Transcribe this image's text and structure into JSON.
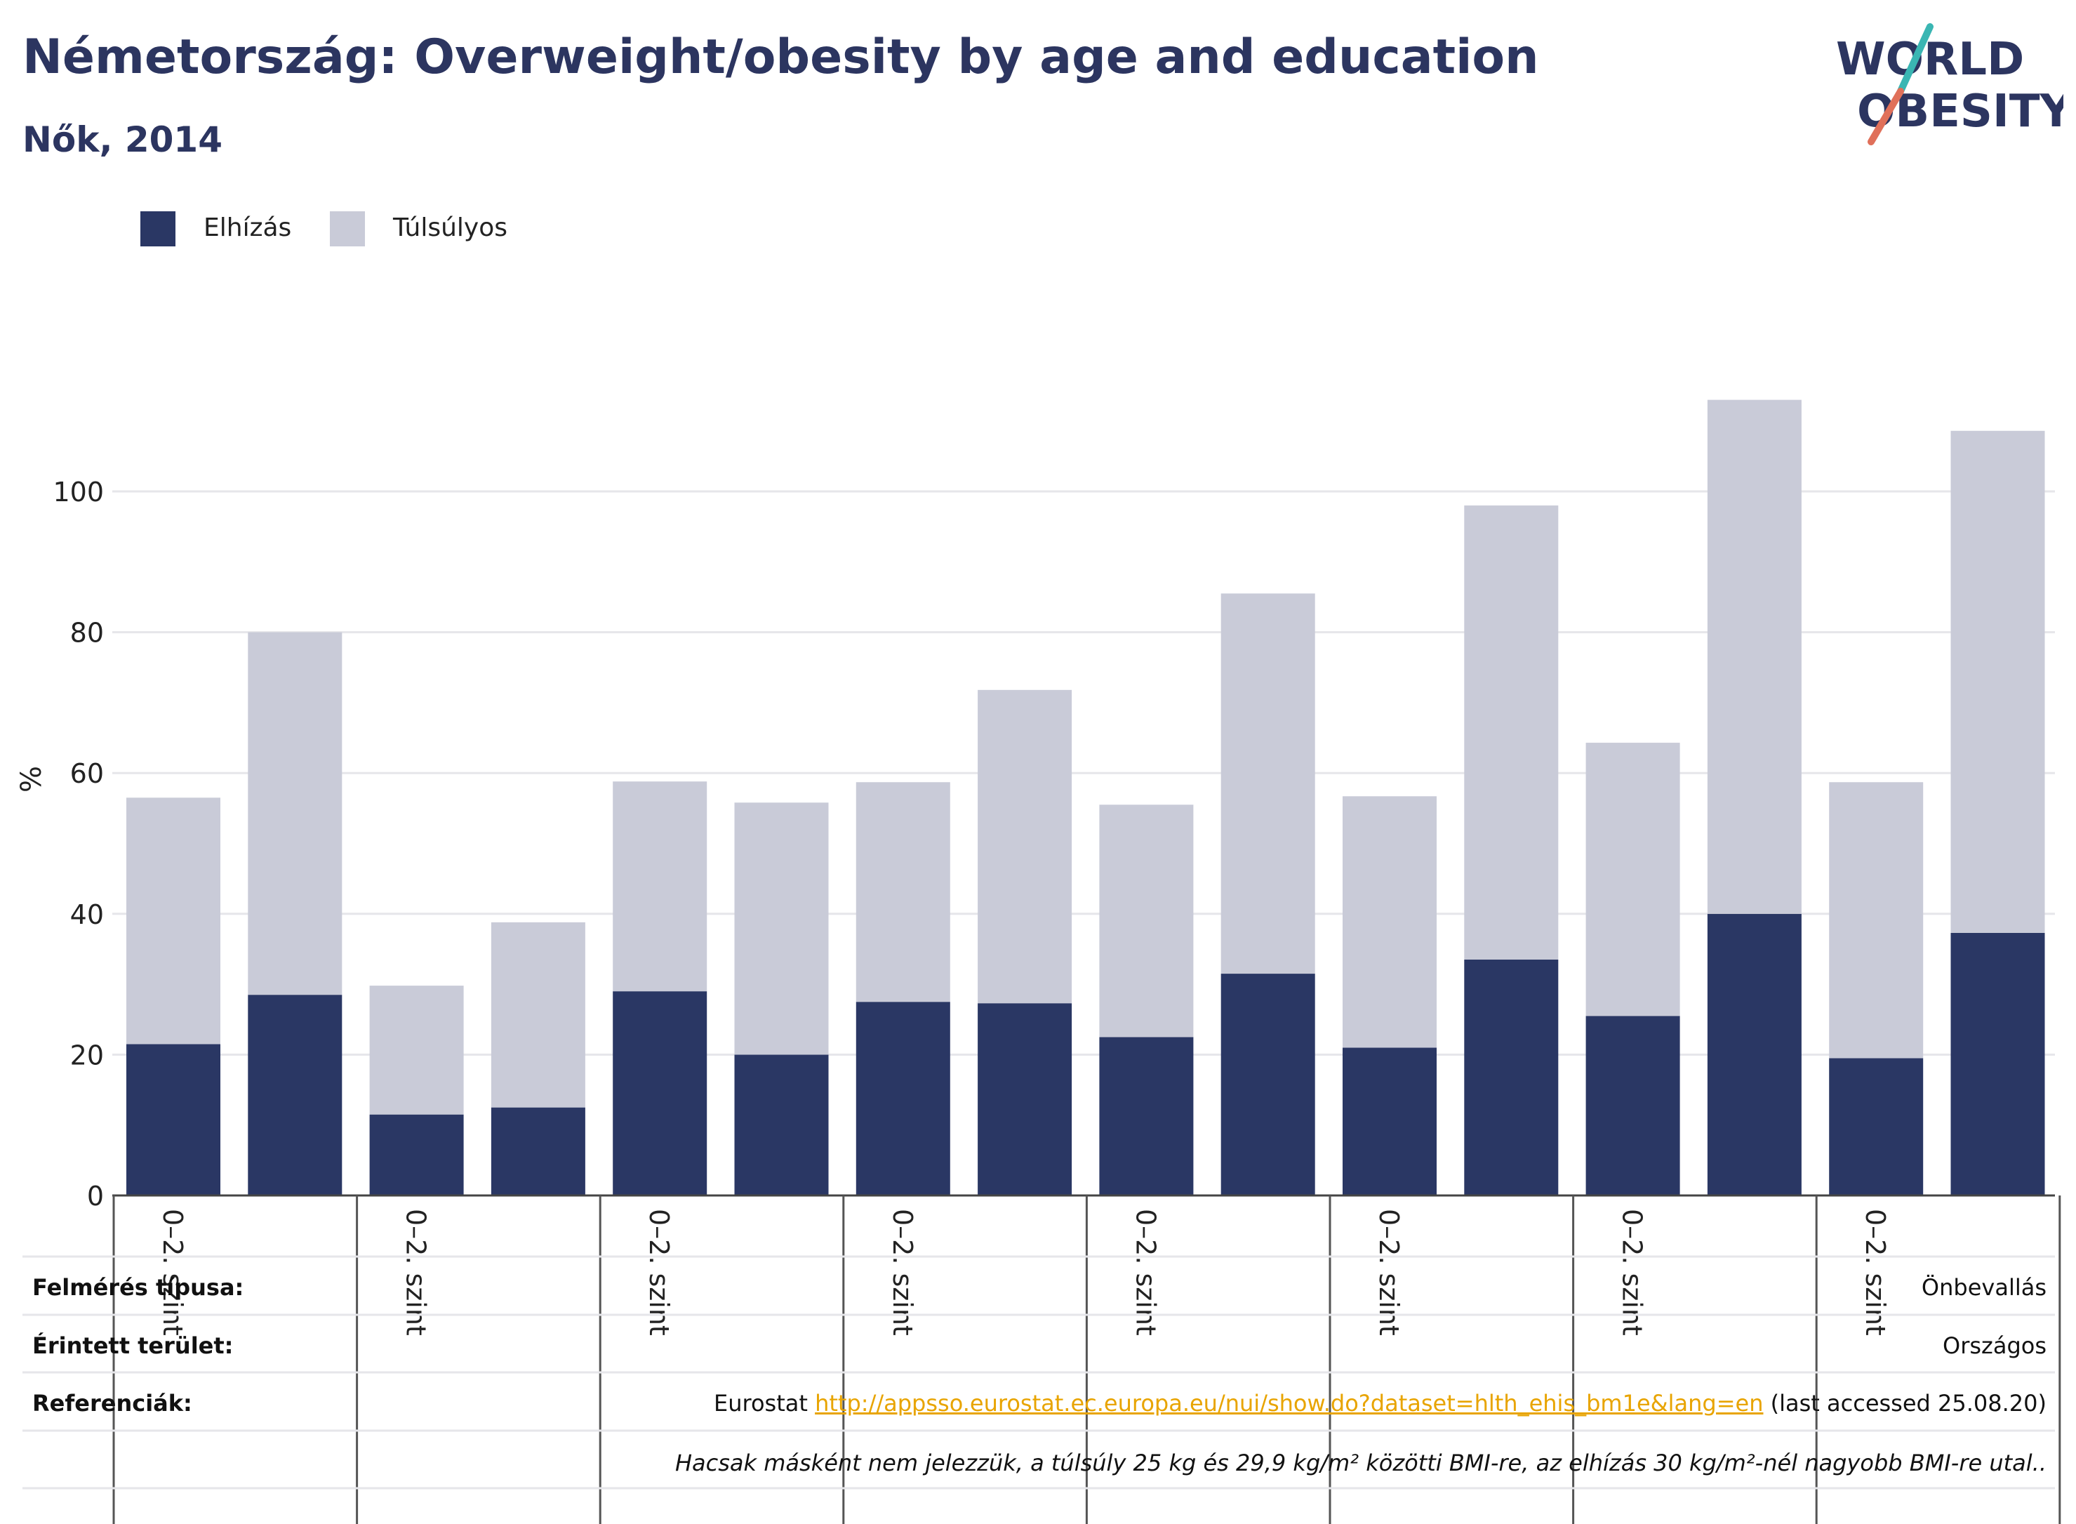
{
  "header": {
    "title": "Németország: Overweight/obesity by age and education",
    "subtitle": "Nők, 2014"
  },
  "logo": {
    "line1": "WORLD",
    "line2": "OBESITY",
    "icon": "world-obesity-logo"
  },
  "colors": {
    "obesity": "#2a3764",
    "overweight": "#c9cbd8",
    "text": "#2c3560",
    "link": "#e8a400"
  },
  "chart_data": {
    "type": "bar",
    "stacked": true,
    "ylabel": "%",
    "ylim": [
      0,
      115
    ],
    "yticks": [
      0,
      20,
      40,
      60,
      80,
      100
    ],
    "grid": true,
    "legend_position": "top-left",
    "series": [
      {
        "name": "Elhízás",
        "values": [
          21.5,
          28.5,
          11.5,
          12.5,
          29.0,
          20.0,
          27.5,
          27.3,
          22.5,
          31.5,
          21.0,
          33.5,
          25.5,
          40.0,
          19.5,
          37.3
        ]
      },
      {
        "name": "Túlsúlyos",
        "values": [
          35.0,
          51.5,
          18.3,
          26.3,
          29.8,
          35.8,
          31.2,
          44.5,
          33.0,
          54.0,
          35.7,
          64.5,
          38.8,
          73.0,
          39.2,
          71.3
        ]
      }
    ],
    "group_labels": [
      "0–2. szint",
      "0–2. szint",
      "0–2. szint",
      "0–2. szint",
      "0–2. szint",
      "0–2. szint",
      "0–2. szint",
      "0–2. szint"
    ]
  },
  "footer": {
    "survey_label": "Felmérés típusa:",
    "survey_value": "Önbevallás",
    "area_label": "Érintett terület:",
    "area_value": "Országos",
    "refs_label": "Referenciák:",
    "refs_prefix": "Eurostat ",
    "refs_link": "http://appsso.eurostat.ec.europa.eu/nui/show.do?dataset=hlth_ehis_bm1e&lang=en",
    "refs_suffix": " (last accessed 25.08.20)",
    "note": "Hacsak másként nem jelezzük, a túlsúly 25 kg és 29,9 kg/m² közötti BMI-re, az elhízás 30 kg/m²-nél nagyobb BMI-re utal.."
  }
}
